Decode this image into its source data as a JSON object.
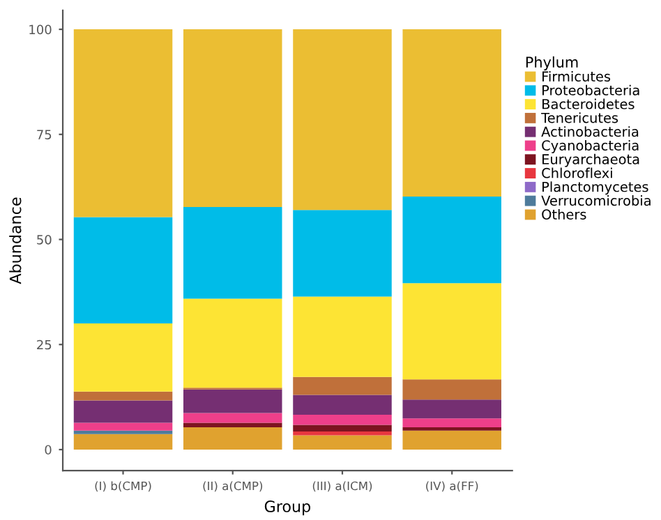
{
  "chart_data": {
    "type": "bar",
    "stacked": true,
    "xlabel": "Group",
    "ylabel": "Abundance",
    "legend_title": "Phylum",
    "legend": "right",
    "categories": [
      "(I) b(CMP)",
      "(II) a(CMP)",
      "(III) a(ICM)",
      "(IV) a(FF)"
    ],
    "ylim": [
      -5,
      104.5
    ],
    "yticks": [
      0,
      25,
      50,
      75,
      100
    ],
    "grid": false,
    "series": [
      {
        "name": "Others",
        "color": "#e0a22f",
        "values": [
          3.7,
          5.3,
          3.4,
          4.5
        ]
      },
      {
        "name": "Verrucomicrobia",
        "color": "#4e7b9b",
        "values": [
          0.8,
          0,
          0,
          0
        ]
      },
      {
        "name": "Planctomycetes",
        "color": "#8e6ac8",
        "values": [
          0,
          0,
          0,
          0
        ]
      },
      {
        "name": "Chloroflexi",
        "color": "#e8373f",
        "values": [
          0,
          0,
          0.9,
          0
        ]
      },
      {
        "name": "Euryarchaeota",
        "color": "#7d1420",
        "values": [
          0,
          1.1,
          1.6,
          0.8
        ]
      },
      {
        "name": "Cyanobacteria",
        "color": "#ee3f8a",
        "values": [
          1.9,
          2.3,
          2.4,
          2.1
        ]
      },
      {
        "name": "Actinobacteria",
        "color": "#752f72",
        "values": [
          5.3,
          5.6,
          4.7,
          4.5
        ]
      },
      {
        "name": "Tenericutes",
        "color": "#c0703a",
        "values": [
          2.1,
          0.4,
          4.3,
          4.8
        ]
      },
      {
        "name": "Bacteroidetes",
        "color": "#fde434",
        "values": [
          16.2,
          21.2,
          19.1,
          22.9
        ]
      },
      {
        "name": "Proteobacteria",
        "color": "#00bce8",
        "values": [
          25.3,
          21.8,
          20.6,
          20.6
        ]
      },
      {
        "name": "Firmicutes",
        "color": "#ebbe33",
        "values": [
          44.7,
          42.3,
          43.0,
          39.8
        ]
      }
    ]
  }
}
